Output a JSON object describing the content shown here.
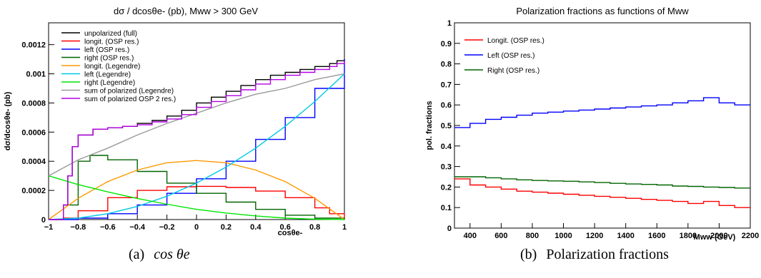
{
  "colors": {
    "black": "#000000",
    "red": "#ff0000",
    "blue": "#0000ff",
    "green": "#006400",
    "orange": "#ff9900",
    "cyan": "#00c8e6",
    "lime": "#00e600",
    "gray": "#999999",
    "magenta": "#b400e6"
  },
  "captions": {
    "left": {
      "label": "(a)",
      "text": "cos θe"
    },
    "right": {
      "label": "(b)",
      "text": "Polarization fractions"
    }
  },
  "chart_data": [
    {
      "type": "line",
      "title": "dσ / dcosθe- (pb), Mww > 300 GeV",
      "xlabel": "cosθe-",
      "ylabel": "dσ/dcosθe- (pb)",
      "xlim": [
        -1,
        1
      ],
      "ylim": [
        0,
        0.00135
      ],
      "xticks": [
        -1,
        -0.8,
        -0.6,
        -0.4,
        -0.2,
        0,
        0.2,
        0.4,
        0.6,
        0.8,
        1
      ],
      "xtick_labels": [
        "−1",
        "−0.8",
        "−0.6",
        "−0.4",
        "−0.2",
        "0",
        "0.2",
        "0.4",
        "0.6",
        "0.8",
        "1"
      ],
      "yticks": [
        0,
        0.0002,
        0.0004,
        0.0006,
        0.0008,
        0.001,
        0.0012
      ],
      "ytick_labels": [
        "0",
        "0.0002",
        "0.0004",
        "0.0006",
        "0.0008",
        "0.001",
        "0.0012"
      ],
      "legend_position": "top-left",
      "grid": false,
      "series": [
        {
          "name": "unpolarized (full)",
          "color": "#000000",
          "step": true,
          "x": [
            -1,
            -0.9,
            -0.87,
            -0.84,
            -0.8,
            -0.7,
            -0.6,
            -0.5,
            -0.4,
            -0.3,
            -0.2,
            -0.1,
            0,
            0.1,
            0.2,
            0.3,
            0.4,
            0.5,
            0.6,
            0.7,
            0.8,
            0.9,
            0.95,
            1
          ],
          "y": [
            0,
            0.0001,
            0.0003,
            0.0005,
            0.00058,
            0.00062,
            0.00063,
            0.00064,
            0.00066,
            0.00068,
            0.00071,
            0.00075,
            0.0008,
            0.00084,
            0.00088,
            0.00092,
            0.00096,
            0.00099,
            0.00101,
            0.00103,
            0.00105,
            0.00107,
            0.00109,
            0.0011
          ]
        },
        {
          "name": "longit. (OSP res.)",
          "color": "#ff0000",
          "step": true,
          "x": [
            -1,
            -0.9,
            -0.8,
            -0.6,
            -0.4,
            -0.2,
            0,
            0.2,
            0.4,
            0.6,
            0.8,
            0.9,
            1
          ],
          "y": [
            0,
            1e-05,
            6e-05,
            0.00015,
            0.0002,
            0.000225,
            0.000228,
            0.00022,
            0.000195,
            0.00015,
            8e-05,
            4e-05,
            0
          ]
        },
        {
          "name": "left (OSP res.)",
          "color": "#0000ff",
          "step": true,
          "x": [
            -1,
            -0.8,
            -0.6,
            -0.4,
            -0.2,
            0,
            0.2,
            0.4,
            0.6,
            0.8,
            1
          ],
          "y": [
            0,
            1e-05,
            4e-05,
            0.0001,
            0.00018,
            0.00028,
            0.0004,
            0.00055,
            0.0007,
            0.0009,
            0.0011
          ]
        },
        {
          "name": "right (OSP res.)",
          "color": "#006400",
          "step": true,
          "x": [
            -1,
            -0.9,
            -0.8,
            -0.72,
            -0.6,
            -0.4,
            -0.2,
            0,
            0.2,
            0.4,
            0.6,
            0.8,
            1
          ],
          "y": [
            0,
            0.0001,
            0.0004,
            0.00044,
            0.00041,
            0.00033,
            0.00025,
            0.00018,
            0.00012,
            7e-05,
            3e-05,
            1e-05,
            0
          ]
        },
        {
          "name": "longit. (Legendre)",
          "color": "#ff9900",
          "step": false,
          "x": [
            -1,
            -0.8,
            -0.6,
            -0.4,
            -0.2,
            0,
            0.2,
            0.4,
            0.6,
            0.8,
            1
          ],
          "y": [
            0,
            0.000146,
            0.00026,
            0.00034,
            0.00039,
            0.000405,
            0.00039,
            0.00034,
            0.00026,
            0.000146,
            0
          ]
        },
        {
          "name": "left (Legendre)",
          "color": "#00c8e6",
          "step": false,
          "x": [
            -1,
            -0.8,
            -0.6,
            -0.4,
            -0.2,
            0,
            0.2,
            0.4,
            0.6,
            0.8,
            1
          ],
          "y": [
            0,
            1e-05,
            4e-05,
            9e-05,
            0.00016,
            0.00025,
            0.00036,
            0.00049,
            0.00064,
            0.00081,
            0.001
          ]
        },
        {
          "name": "right (Legendre)",
          "color": "#00e600",
          "step": false,
          "x": [
            -1,
            -0.8,
            -0.6,
            -0.4,
            -0.2,
            0,
            0.2,
            0.4,
            0.6,
            0.8,
            1
          ],
          "y": [
            0.0003,
            0.00024,
            0.00019,
            0.000145,
            0.000105,
            7e-05,
            4.5e-05,
            2.5e-05,
            1e-05,
            3e-06,
            0
          ]
        },
        {
          "name": "sum of polarized (Legendre)",
          "color": "#999999",
          "step": false,
          "x": [
            -1,
            -0.8,
            -0.6,
            -0.4,
            -0.2,
            0,
            0.2,
            0.4,
            0.6,
            0.8,
            1
          ],
          "y": [
            0.0003,
            0.00041,
            0.00049,
            0.00058,
            0.00066,
            0.00073,
            0.0008,
            0.00086,
            0.0009,
            0.00096,
            0.001
          ]
        },
        {
          "name": "sum of polarized OSP 2 res.)",
          "color": "#b400e6",
          "step": true,
          "x": [
            -1,
            -0.9,
            -0.87,
            -0.84,
            -0.8,
            -0.7,
            -0.6,
            -0.5,
            -0.4,
            -0.3,
            -0.2,
            -0.1,
            0,
            0.1,
            0.2,
            0.3,
            0.4,
            0.5,
            0.6,
            0.7,
            0.8,
            0.9,
            0.95,
            1
          ],
          "y": [
            0,
            0.0001,
            0.0003,
            0.0005,
            0.00058,
            0.00062,
            0.00063,
            0.00064,
            0.00065,
            0.00067,
            0.00069,
            0.00072,
            0.00077,
            0.00081,
            0.00085,
            0.00089,
            0.00093,
            0.00096,
            0.00099,
            0.00101,
            0.00103,
            0.00105,
            0.00107,
            0.00109
          ]
        }
      ]
    },
    {
      "type": "line",
      "title": "Polarization fractions as functions of Mww",
      "xlabel": "Mww (GeV)",
      "ylabel": "pol. fractions",
      "xlim": [
        300,
        2200
      ],
      "ylim": [
        0,
        1
      ],
      "xticks": [
        400,
        600,
        800,
        1000,
        1200,
        1400,
        1600,
        1800,
        2000,
        2200
      ],
      "xtick_labels": [
        "400",
        "600",
        "800",
        "1000",
        "1200",
        "1400",
        "1600",
        "1800",
        "2000",
        "2200"
      ],
      "yticks": [
        0,
        0.1,
        0.2,
        0.3,
        0.4,
        0.5,
        0.6,
        0.7,
        0.8,
        0.9,
        1
      ],
      "ytick_labels": [
        "0",
        "0.1",
        "0.2",
        "0.3",
        "0.4",
        "0.5",
        "0.6",
        "0.7",
        "0.8",
        "0.9",
        "1"
      ],
      "legend_position": "top-left",
      "grid": false,
      "series": [
        {
          "name": "Longit. (OSP res.)",
          "color": "#ff0000",
          "step": true,
          "x": [
            300,
            400,
            500,
            600,
            700,
            800,
            900,
            1000,
            1100,
            1200,
            1300,
            1400,
            1500,
            1600,
            1700,
            1800,
            1900,
            2000,
            2100,
            2200
          ],
          "y": [
            0.24,
            0.21,
            0.2,
            0.19,
            0.18,
            0.175,
            0.17,
            0.165,
            0.16,
            0.155,
            0.15,
            0.145,
            0.14,
            0.135,
            0.13,
            0.12,
            0.13,
            0.11,
            0.1,
            0.1
          ]
        },
        {
          "name": "Left (OSP res.)",
          "color": "#0000ff",
          "step": true,
          "x": [
            300,
            400,
            500,
            600,
            700,
            800,
            900,
            1000,
            1100,
            1200,
            1300,
            1400,
            1500,
            1600,
            1700,
            1800,
            1900,
            2000,
            2100,
            2200
          ],
          "y": [
            0.49,
            0.51,
            0.53,
            0.54,
            0.55,
            0.56,
            0.565,
            0.57,
            0.575,
            0.58,
            0.585,
            0.59,
            0.595,
            0.6,
            0.61,
            0.62,
            0.635,
            0.61,
            0.6,
            0.6
          ]
        },
        {
          "name": "Right (OSP res.)",
          "color": "#006400",
          "step": true,
          "x": [
            300,
            400,
            500,
            600,
            700,
            800,
            900,
            1000,
            1100,
            1200,
            1300,
            1400,
            1500,
            1600,
            1700,
            1800,
            1900,
            2000,
            2100,
            2200
          ],
          "y": [
            0.25,
            0.25,
            0.245,
            0.24,
            0.235,
            0.232,
            0.23,
            0.228,
            0.225,
            0.222,
            0.218,
            0.215,
            0.213,
            0.21,
            0.205,
            0.203,
            0.2,
            0.198,
            0.195,
            0.195
          ]
        }
      ]
    }
  ]
}
